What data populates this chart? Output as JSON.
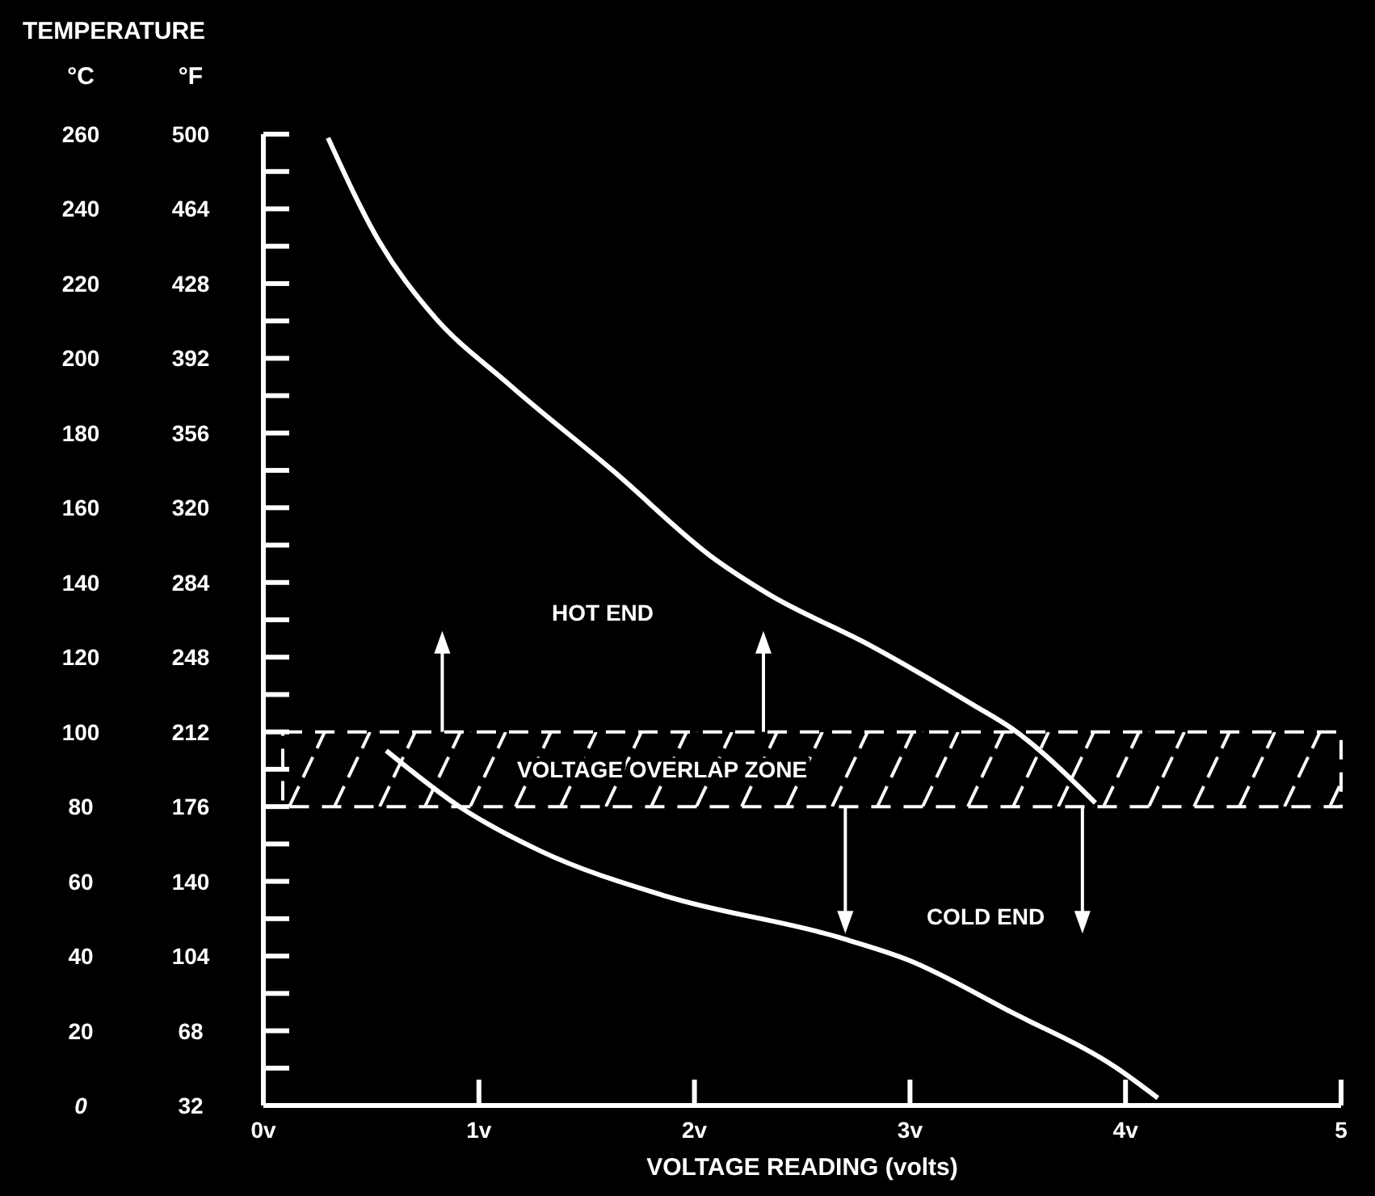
{
  "chart_data": {
    "type": "line",
    "title": "TEMPERATURE",
    "xlabel": "VOLTAGE READING (volts)",
    "ylabel": "°C",
    "y2label": "°F",
    "xlim": [
      0,
      5
    ],
    "xticks": [
      {
        "value": 0,
        "label": "0v"
      },
      {
        "value": 1,
        "label": "1v"
      },
      {
        "value": 2,
        "label": "2v"
      },
      {
        "value": 3,
        "label": "3v"
      },
      {
        "value": 4,
        "label": "4v"
      },
      {
        "value": 5,
        "label": "5"
      }
    ],
    "ylim": [
      0,
      260
    ],
    "yticks": [
      0,
      {
        "value": 10,
        "label": null
      },
      20,
      {
        "value": 30,
        "label": null
      },
      40,
      {
        "value": 50,
        "label": null
      },
      60,
      {
        "value": 70,
        "label": null
      },
      80,
      {
        "value": 90,
        "label": null
      },
      100,
      {
        "value": 110,
        "label": null
      },
      120,
      {
        "value": 130,
        "label": null
      },
      140,
      {
        "value": 150,
        "label": null
      },
      160,
      {
        "value": 170,
        "label": null
      },
      180,
      {
        "value": 190,
        "label": null
      },
      200,
      {
        "value": 210,
        "label": null
      },
      220,
      {
        "value": 230,
        "label": null
      },
      240,
      {
        "value": 250,
        "label": null
      },
      260
    ],
    "y2lim": [
      32,
      500
    ],
    "y2ticks": [
      32,
      68,
      104,
      140,
      176,
      212,
      248,
      284,
      320,
      356,
      392,
      428,
      464,
      500
    ],
    "grid": false,
    "marker": "none",
    "line_style": "solid",
    "series": [
      {
        "color": "#ffffff",
        "x": [
          0.3,
          0.54,
          0.78,
          1.14,
          1.62,
          2.1,
          2.34,
          2.82,
          3.3,
          3.47,
          3.86
        ],
        "values": [
          259,
          231,
          212,
          193,
          170,
          146,
          137,
          123,
          107,
          101,
          81
        ]
      },
      {
        "color": "#ffffff",
        "x": [
          0.57,
          0.91,
          1.29,
          1.87,
          2.67,
          2.99,
          3.47,
          3.96,
          4.15
        ],
        "values": [
          95,
          80,
          68,
          56,
          45,
          39,
          25,
          10,
          2
        ]
      }
    ],
    "bands": [
      {
        "axis": "y",
        "from": 80,
        "to": 100,
        "label": "VOLTAGE OVERLAP ZONE",
        "color": "#ffffff"
      }
    ],
    "annotations": [
      "HOT END",
      "COLD END"
    ]
  }
}
